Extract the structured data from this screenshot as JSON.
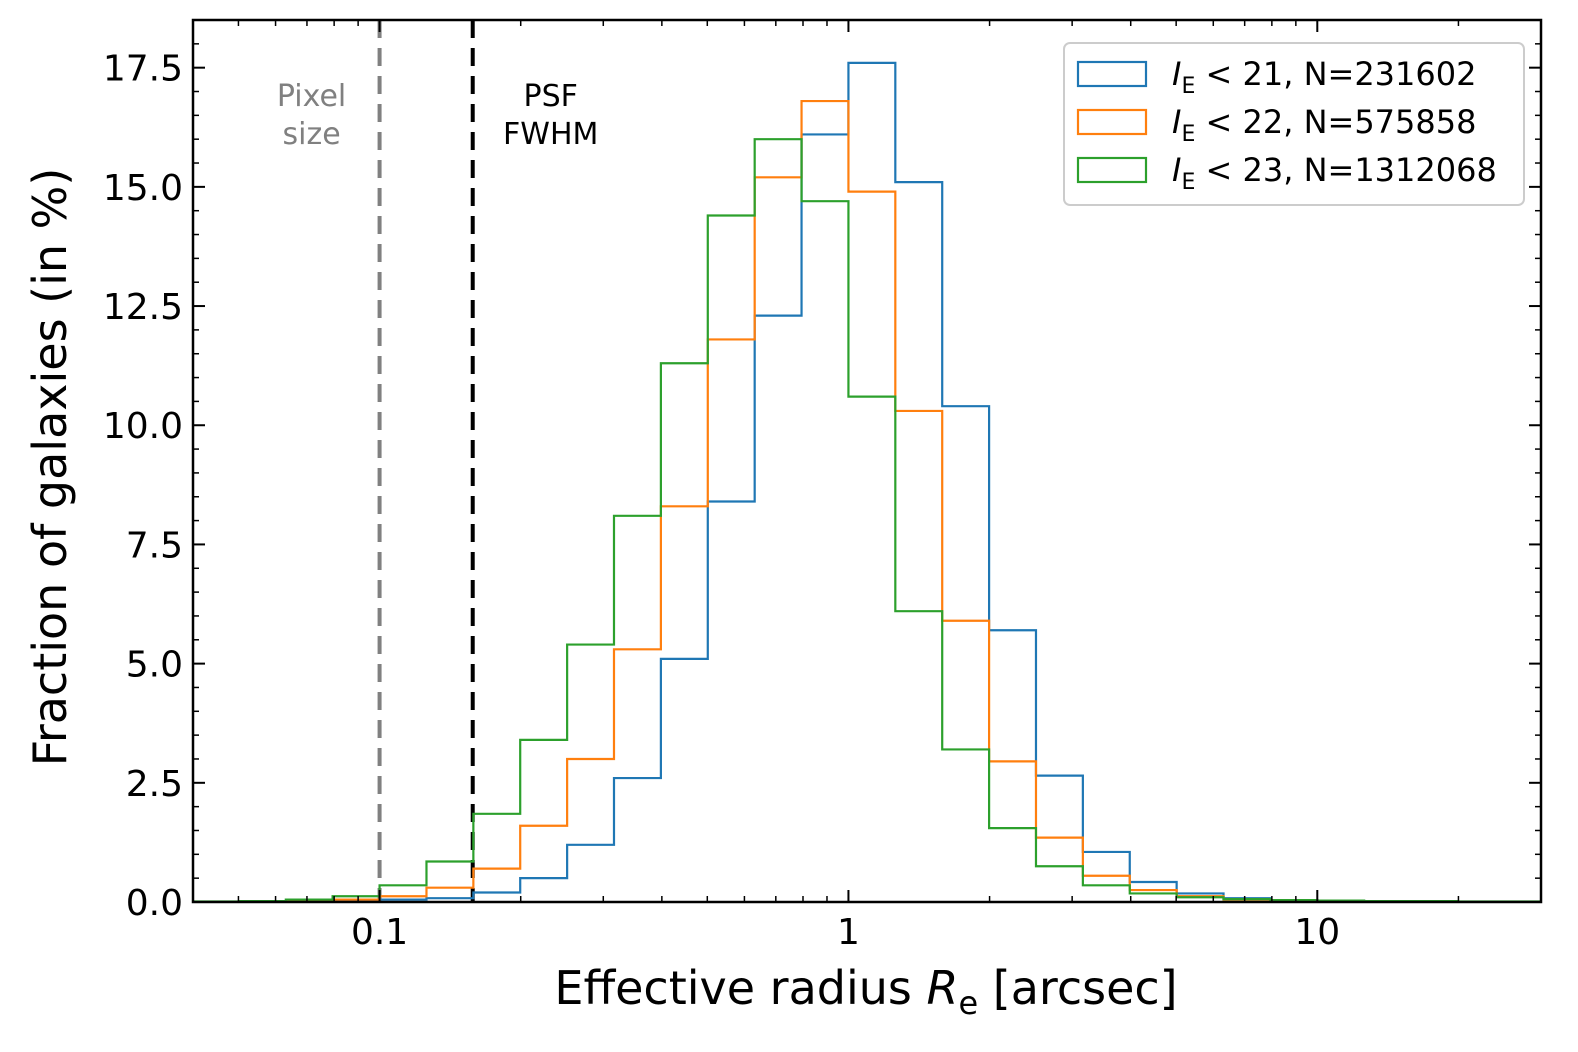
{
  "chart_data": {
    "type": "histogram",
    "xscale": "log",
    "xlabel_prefix": "Effective radius ",
    "xlabel_symbol": "R",
    "xlabel_sub": "e",
    "xlabel_suffix": " [arcsec]",
    "ylabel": "Fraction of galaxies (in %)",
    "xlim": [
      0.04,
      30
    ],
    "ylim": [
      0,
      18.5
    ],
    "x_ticks": [
      {
        "value": 0.1,
        "label": "0.1"
      },
      {
        "value": 1,
        "label": "1"
      },
      {
        "value": 10,
        "label": "10"
      }
    ],
    "y_ticks": [
      {
        "value": 0.0,
        "label": "0.0"
      },
      {
        "value": 2.5,
        "label": "2.5"
      },
      {
        "value": 5.0,
        "label": "5.0"
      },
      {
        "value": 7.5,
        "label": "7.5"
      },
      {
        "value": 10.0,
        "label": "10.0"
      },
      {
        "value": 12.5,
        "label": "12.5"
      },
      {
        "value": 15.0,
        "label": "15.0"
      },
      {
        "value": 17.5,
        "label": "17.5"
      }
    ],
    "bin_edges": [
      0.0398,
      0.0501,
      0.0631,
      0.0794,
      0.1,
      0.1259,
      0.1585,
      0.1995,
      0.2512,
      0.3162,
      0.3981,
      0.5012,
      0.631,
      0.7943,
      1.0,
      1.2589,
      1.5849,
      1.9953,
      2.5119,
      3.1623,
      3.9811,
      5.0119,
      6.3096,
      7.9433,
      10.0,
      12.589,
      15.849,
      19.953,
      25.119,
      31.623
    ],
    "series": [
      {
        "name": "I_E < 21, N=231602",
        "legend_symbol": "I",
        "legend_sub": "E",
        "legend_rest": " < 21, N=231602",
        "color": "#1f77b4",
        "values": [
          0.0,
          0.0,
          0.0,
          0.02,
          0.05,
          0.08,
          0.2,
          0.5,
          1.2,
          2.6,
          5.1,
          8.4,
          12.3,
          16.1,
          17.6,
          15.1,
          10.4,
          5.7,
          2.65,
          1.05,
          0.42,
          0.18,
          0.08,
          0.04,
          0.02,
          0.01,
          0.0,
          0.0,
          0.0
        ]
      },
      {
        "name": "I_E < 22, N=575858",
        "legend_symbol": "I",
        "legend_sub": "E",
        "legend_rest": " < 22, N=575858",
        "color": "#ff7f0e",
        "values": [
          0.0,
          0.0,
          0.02,
          0.05,
          0.12,
          0.3,
          0.7,
          1.6,
          3.0,
          5.3,
          8.3,
          11.8,
          15.2,
          16.8,
          14.9,
          10.3,
          5.9,
          2.95,
          1.35,
          0.55,
          0.25,
          0.12,
          0.05,
          0.03,
          0.02,
          0.01,
          0.01,
          0.0,
          0.0
        ]
      },
      {
        "name": "I_E < 23, N=1312068",
        "legend_symbol": "I",
        "legend_sub": "E",
        "legend_rest": " < 23, N=1312068",
        "color": "#2ca02c",
        "values": [
          0.01,
          0.02,
          0.05,
          0.12,
          0.35,
          0.85,
          1.85,
          3.4,
          5.4,
          8.1,
          11.3,
          14.4,
          16.0,
          14.7,
          10.6,
          6.1,
          3.2,
          1.55,
          0.75,
          0.35,
          0.18,
          0.1,
          0.06,
          0.04,
          0.03,
          0.02,
          0.02,
          0.01,
          0.01
        ]
      }
    ],
    "vlines": [
      {
        "x": 0.1,
        "color": "#808080",
        "line1": "Pixel",
        "line2": "size"
      },
      {
        "x": 0.158,
        "color": "#000000",
        "line1": "PSF",
        "line2": "FWHM"
      }
    ],
    "legend_position": "top-right"
  }
}
